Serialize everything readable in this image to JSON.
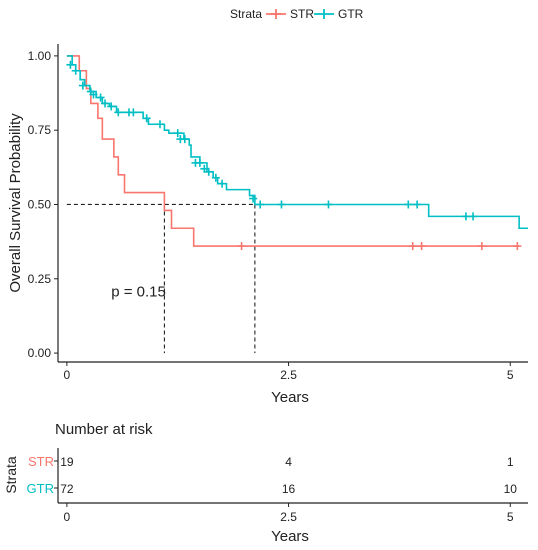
{
  "chart_data": {
    "type": "line",
    "subtype": "kaplan-meier",
    "legend": {
      "title": "Strata",
      "placement": "top"
    },
    "xlabel": "Years",
    "ylabel": "Overall Survival Probability",
    "xlim": [
      -0.1,
      5.2
    ],
    "ylim": [
      -0.03,
      1.04
    ],
    "xticks": [
      0,
      2.5,
      5
    ],
    "xtick_labels": [
      "0",
      "2.5",
      "5"
    ],
    "yticks": [
      0,
      0.25,
      0.5,
      0.75,
      1
    ],
    "ytick_labels": [
      "0.00",
      "0.25",
      "0.50",
      "0.75",
      "1.00"
    ],
    "grid": false,
    "annotation": "p = 0.15",
    "annotation_pos": {
      "x": 0.5,
      "y": 0.19
    },
    "median_lines": {
      "y": 0.5,
      "x": [
        1.1,
        2.12
      ]
    },
    "series": [
      {
        "name": "STR",
        "color": "#F8766D",
        "steps": [
          [
            0,
            1
          ],
          [
            0.14,
            1
          ],
          [
            0.14,
            0.95
          ],
          [
            0.22,
            0.95
          ],
          [
            0.22,
            0.89
          ],
          [
            0.27,
            0.89
          ],
          [
            0.27,
            0.84
          ],
          [
            0.35,
            0.84
          ],
          [
            0.35,
            0.79
          ],
          [
            0.4,
            0.79
          ],
          [
            0.4,
            0.72
          ],
          [
            0.53,
            0.72
          ],
          [
            0.53,
            0.66
          ],
          [
            0.58,
            0.66
          ],
          [
            0.58,
            0.6
          ],
          [
            0.65,
            0.6
          ],
          [
            0.65,
            0.54
          ],
          [
            1.1,
            0.54
          ],
          [
            1.1,
            0.48
          ],
          [
            1.18,
            0.48
          ],
          [
            1.18,
            0.42
          ],
          [
            1.43,
            0.42
          ],
          [
            1.43,
            0.36
          ],
          [
            5.1,
            0.36
          ]
        ],
        "censor": [
          [
            1.97,
            0.36
          ],
          [
            3.9,
            0.36
          ],
          [
            4.0,
            0.36
          ],
          [
            4.68,
            0.36
          ],
          [
            5.08,
            0.36
          ]
        ]
      },
      {
        "name": "GTR",
        "color": "#00BFC4",
        "steps": [
          [
            0,
            1
          ],
          [
            0.06,
            1
          ],
          [
            0.06,
            0.97
          ],
          [
            0.1,
            0.97
          ],
          [
            0.1,
            0.95
          ],
          [
            0.15,
            0.95
          ],
          [
            0.15,
            0.92
          ],
          [
            0.2,
            0.92
          ],
          [
            0.2,
            0.9
          ],
          [
            0.26,
            0.9
          ],
          [
            0.26,
            0.88
          ],
          [
            0.33,
            0.88
          ],
          [
            0.33,
            0.86
          ],
          [
            0.4,
            0.86
          ],
          [
            0.4,
            0.84
          ],
          [
            0.48,
            0.84
          ],
          [
            0.48,
            0.83
          ],
          [
            0.56,
            0.83
          ],
          [
            0.56,
            0.81
          ],
          [
            0.86,
            0.81
          ],
          [
            0.86,
            0.79
          ],
          [
            0.92,
            0.79
          ],
          [
            0.92,
            0.77
          ],
          [
            1.1,
            0.77
          ],
          [
            1.1,
            0.75
          ],
          [
            1.15,
            0.75
          ],
          [
            1.15,
            0.74
          ],
          [
            1.32,
            0.74
          ],
          [
            1.32,
            0.72
          ],
          [
            1.38,
            0.72
          ],
          [
            1.38,
            0.7
          ],
          [
            1.4,
            0.7
          ],
          [
            1.4,
            0.66
          ],
          [
            1.5,
            0.66
          ],
          [
            1.5,
            0.64
          ],
          [
            1.58,
            0.64
          ],
          [
            1.58,
            0.61
          ],
          [
            1.65,
            0.61
          ],
          [
            1.65,
            0.59
          ],
          [
            1.7,
            0.59
          ],
          [
            1.7,
            0.57
          ],
          [
            1.8,
            0.57
          ],
          [
            1.8,
            0.55
          ],
          [
            2.06,
            0.55
          ],
          [
            2.06,
            0.53
          ],
          [
            2.12,
            0.53
          ],
          [
            2.12,
            0.5
          ],
          [
            4.08,
            0.5
          ],
          [
            4.08,
            0.46
          ],
          [
            5.1,
            0.46
          ],
          [
            5.1,
            0.42
          ],
          [
            5.2,
            0.42
          ]
        ],
        "censor": [
          [
            0.04,
            0.97
          ],
          [
            0.1,
            0.95
          ],
          [
            0.18,
            0.9
          ],
          [
            0.27,
            0.88
          ],
          [
            0.3,
            0.87
          ],
          [
            0.38,
            0.86
          ],
          [
            0.43,
            0.84
          ],
          [
            0.5,
            0.83
          ],
          [
            0.58,
            0.81
          ],
          [
            0.7,
            0.81
          ],
          [
            0.75,
            0.81
          ],
          [
            0.9,
            0.79
          ],
          [
            1.05,
            0.77
          ],
          [
            1.25,
            0.74
          ],
          [
            1.28,
            0.72
          ],
          [
            1.33,
            0.72
          ],
          [
            1.45,
            0.64
          ],
          [
            1.5,
            0.64
          ],
          [
            1.55,
            0.62
          ],
          [
            1.6,
            0.61
          ],
          [
            1.68,
            0.59
          ],
          [
            1.75,
            0.57
          ],
          [
            2.1,
            0.52
          ],
          [
            2.18,
            0.5
          ],
          [
            2.42,
            0.5
          ],
          [
            2.95,
            0.5
          ],
          [
            3.85,
            0.5
          ],
          [
            3.95,
            0.5
          ],
          [
            4.5,
            0.46
          ],
          [
            4.58,
            0.46
          ]
        ]
      }
    ],
    "risk_table": {
      "title": "Number at risk",
      "ylabel": "Strata",
      "xlabel": "Years",
      "times": [
        0,
        2.5,
        5
      ],
      "time_labels": [
        "0",
        "2.5",
        "5"
      ],
      "rows": [
        {
          "name": "STR",
          "color": "#F8766D",
          "counts": [
            "19",
            "4",
            "1"
          ]
        },
        {
          "name": "GTR",
          "color": "#00BFC4",
          "counts": [
            "72",
            "16",
            "10"
          ]
        }
      ]
    }
  }
}
